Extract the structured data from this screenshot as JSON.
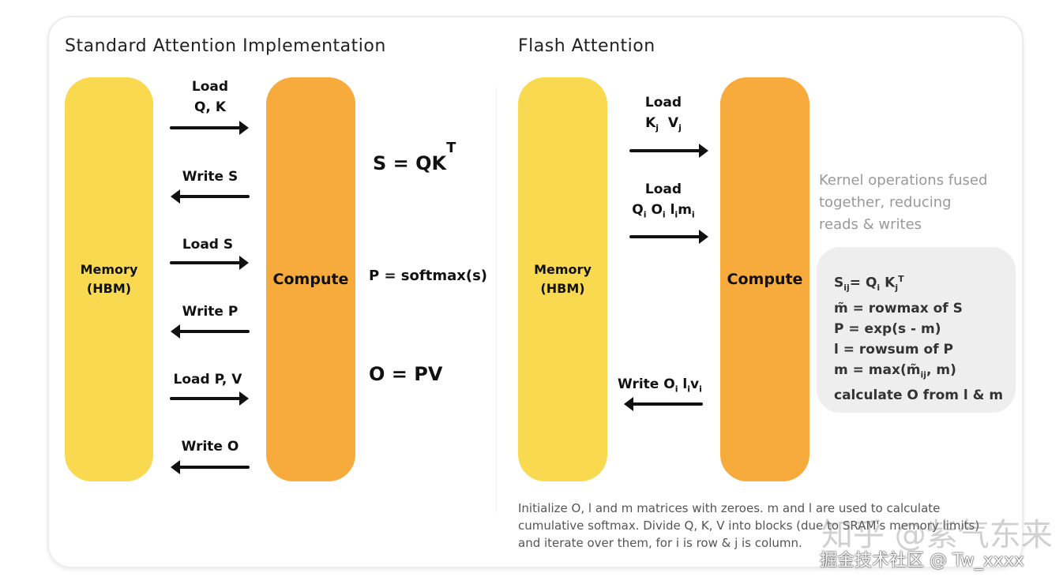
{
  "left": {
    "title": "Standard Attention Implementation",
    "memory": [
      "Memory",
      "(HBM)"
    ],
    "compute": "Compute",
    "steps": [
      {
        "label": "Load",
        "label2": "Q, K",
        "dir": "right"
      },
      {
        "label": "Write S",
        "dir": "left"
      },
      {
        "label": "Load S",
        "dir": "right"
      },
      {
        "label": "Write P",
        "dir": "left"
      },
      {
        "label": "Load P, V",
        "dir": "right"
      },
      {
        "label": "Write O",
        "dir": "left"
      }
    ],
    "equations": {
      "s": "S = QK",
      "s_sup": "T",
      "p": "P = softmax(s)",
      "o": "O = PV"
    }
  },
  "right": {
    "title": "Flash Attention",
    "memory": [
      "Memory",
      "(HBM)"
    ],
    "compute": "Compute",
    "load1": {
      "label": "Load",
      "k": "K",
      "k_sub": "j",
      "v": "V",
      "v_sub": "j"
    },
    "load2": {
      "label": "Load",
      "q": "Q",
      "q_sub": "i",
      "o": "O",
      "o_sub": "i",
      "l": "l",
      "l_sub": "i",
      "m": "m",
      "m_sub": "i"
    },
    "write": {
      "label": "Write O",
      "o_sub": "i",
      "l": "l",
      "l_sub": "i",
      "v": "v",
      "v_sub": "i"
    },
    "note": [
      "Kernel operations fused",
      "together, reducing",
      "reads & writes"
    ],
    "ops": [
      "= Q",
      "K",
      "m̃ = rowmax of S",
      "P = exp(s - m)",
      "l = rowsum of P",
      "m = max(m̃",
      "ij",
      ", m)",
      "calculate O from l & m"
    ],
    "ops_s": "S",
    "ops_s_sub": "ij",
    "ops_q_sub": "i",
    "ops_k_sub": "j",
    "ops_k_sup": "T",
    "footer": [
      "Initialize O, l and m matrices with zeroes. m and l are used to calculate",
      "cumulative softmax. Divide Q, K, V into blocks (due to SRAM's memory limits)",
      "and iterate over them, for i is row & j is column."
    ]
  },
  "watermarks": [
    "知乎 @紫气东来",
    "掘金技术社区 @ Tw_xxxx"
  ]
}
